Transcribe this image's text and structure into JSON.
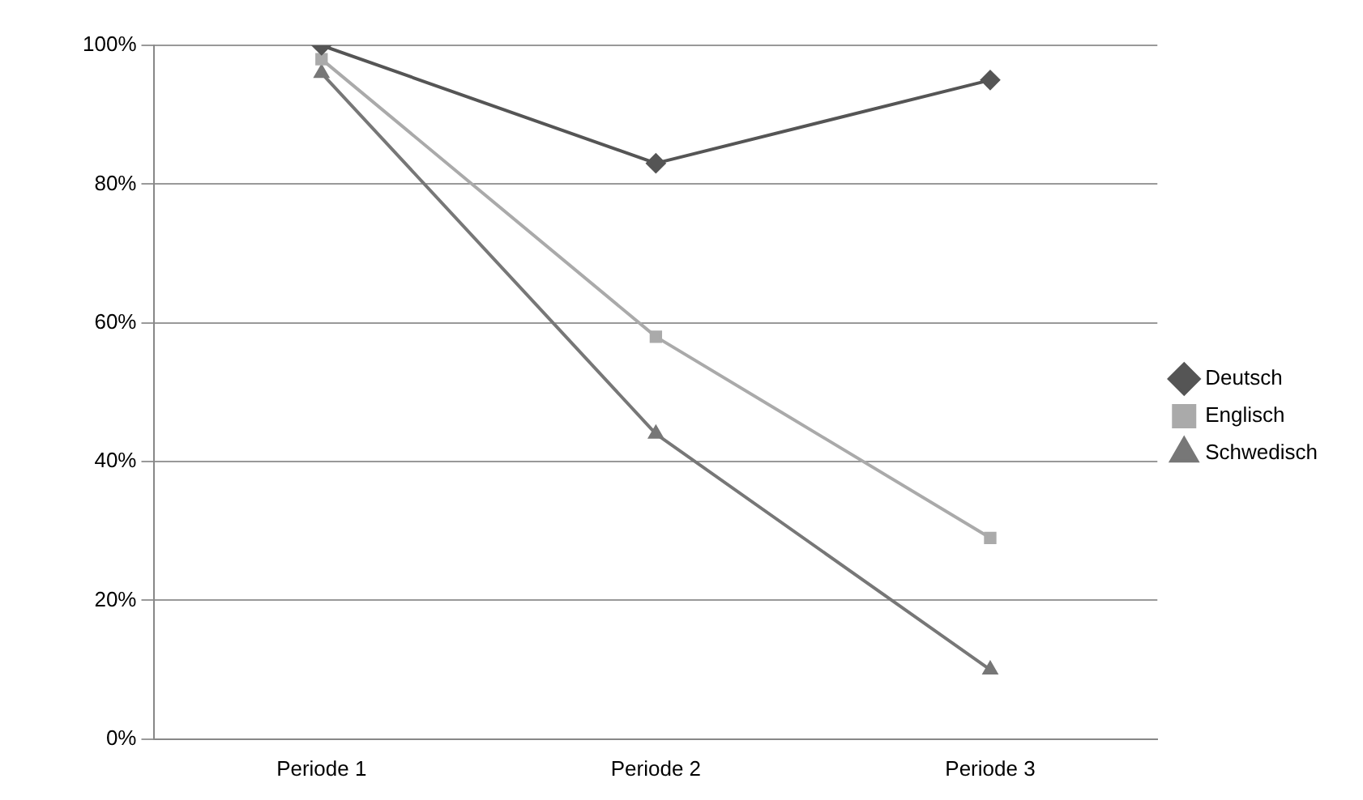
{
  "chart_data": {
    "type": "line",
    "categories": [
      "Periode 1",
      "Periode 2",
      "Periode 3"
    ],
    "series": [
      {
        "name": "Deutsch",
        "color": "#555555",
        "marker": "diamond",
        "values": [
          100,
          83,
          95
        ]
      },
      {
        "name": "Englisch",
        "color": "#aaaaaa",
        "marker": "square",
        "values": [
          98,
          58,
          29
        ]
      },
      {
        "name": "Schwedisch",
        "color": "#777777",
        "marker": "triangle",
        "values": [
          96,
          44,
          10
        ]
      }
    ],
    "ylim": [
      0,
      100
    ],
    "yticks": [
      {
        "value": 0,
        "label": "0%"
      },
      {
        "value": 20,
        "label": "20%"
      },
      {
        "value": 40,
        "label": "40%"
      },
      {
        "value": 60,
        "label": "60%"
      },
      {
        "value": 80,
        "label": "80%"
      },
      {
        "value": 100,
        "label": "100%"
      }
    ],
    "grid": "y",
    "legend": "right"
  }
}
